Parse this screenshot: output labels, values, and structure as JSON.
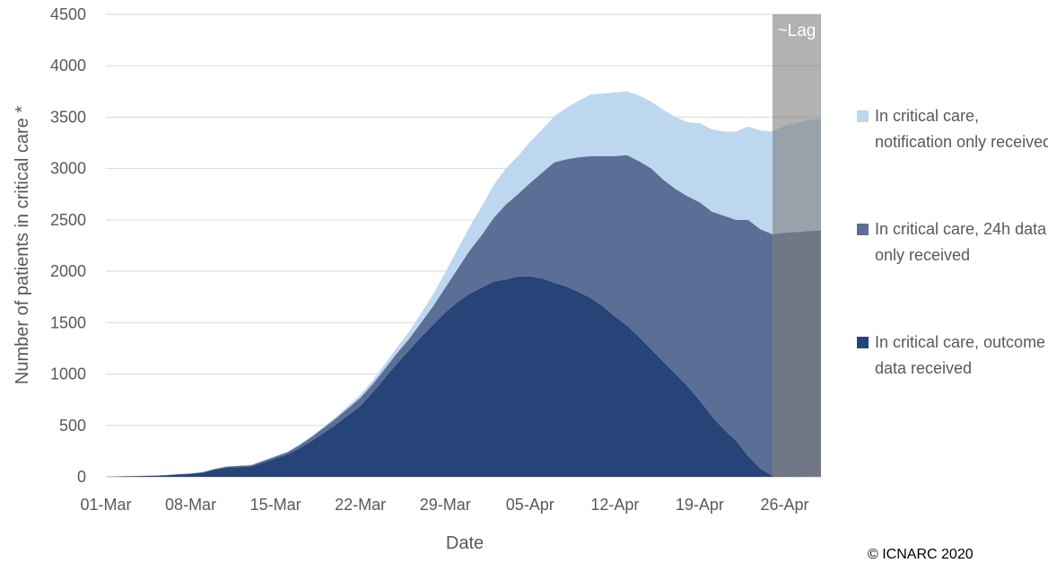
{
  "chart_data": {
    "type": "area",
    "stacked": true,
    "xlabel": "Date",
    "ylabel": "Number of patients in critical care *",
    "ylim": [
      0,
      4500
    ],
    "yticks": [
      0,
      500,
      1000,
      1500,
      2000,
      2500,
      3000,
      3500,
      4000,
      4500
    ],
    "xticks": [
      "01-Mar",
      "08-Mar",
      "15-Mar",
      "22-Mar",
      "29-Mar",
      "05-Apr",
      "12-Apr",
      "19-Apr",
      "26-Apr"
    ],
    "x": [
      "01-Mar",
      "02-Mar",
      "03-Mar",
      "04-Mar",
      "05-Mar",
      "06-Mar",
      "07-Mar",
      "08-Mar",
      "09-Mar",
      "10-Mar",
      "11-Mar",
      "12-Mar",
      "13-Mar",
      "14-Mar",
      "15-Mar",
      "16-Mar",
      "17-Mar",
      "18-Mar",
      "19-Mar",
      "20-Mar",
      "21-Mar",
      "22-Mar",
      "23-Mar",
      "24-Mar",
      "25-Mar",
      "26-Mar",
      "27-Mar",
      "28-Mar",
      "29-Mar",
      "30-Mar",
      "31-Mar",
      "01-Apr",
      "02-Apr",
      "03-Apr",
      "04-Apr",
      "05-Apr",
      "06-Apr",
      "07-Apr",
      "08-Apr",
      "09-Apr",
      "10-Apr",
      "11-Apr",
      "12-Apr",
      "13-Apr",
      "14-Apr",
      "15-Apr",
      "16-Apr",
      "17-Apr",
      "18-Apr",
      "19-Apr",
      "20-Apr",
      "21-Apr",
      "22-Apr",
      "23-Apr",
      "24-Apr",
      "25-Apr",
      "26-Apr",
      "27-Apr",
      "28-Apr",
      "29-Apr"
    ],
    "series": [
      {
        "name": "In critical care, outcome data received",
        "color": "#264478",
        "values": [
          0,
          3,
          5,
          8,
          10,
          15,
          22,
          28,
          40,
          70,
          90,
          95,
          100,
          140,
          180,
          220,
          280,
          350,
          430,
          510,
          600,
          690,
          820,
          960,
          1100,
          1230,
          1360,
          1480,
          1600,
          1700,
          1780,
          1840,
          1900,
          1920,
          1950,
          1950,
          1930,
          1890,
          1850,
          1800,
          1740,
          1660,
          1560,
          1470,
          1360,
          1240,
          1120,
          1000,
          880,
          740,
          590,
          460,
          350,
          200,
          80,
          10,
          5,
          3,
          2,
          1
        ]
      },
      {
        "name": "In critical care, 24h data only received",
        "color": "#5A6E96",
        "values": [
          0,
          1,
          1,
          2,
          2,
          3,
          4,
          5,
          6,
          8,
          10,
          12,
          14,
          16,
          18,
          20,
          30,
          40,
          50,
          60,
          70,
          80,
          80,
          90,
          100,
          110,
          140,
          180,
          240,
          320,
          420,
          510,
          620,
          730,
          800,
          910,
          1030,
          1170,
          1240,
          1310,
          1380,
          1460,
          1560,
          1660,
          1710,
          1760,
          1770,
          1800,
          1850,
          1930,
          1990,
          2080,
          2150,
          2300,
          2330,
          2350,
          2370,
          2380,
          2390,
          2395
        ]
      },
      {
        "name": "In critical care, notification only received",
        "color": "#BDD7EE",
        "values": [
          0,
          0,
          0,
          0,
          0,
          0,
          0,
          0,
          0,
          1,
          1,
          2,
          3,
          4,
          5,
          6,
          8,
          10,
          12,
          15,
          20,
          30,
          35,
          45,
          55,
          70,
          90,
          115,
          150,
          190,
          230,
          280,
          320,
          350,
          370,
          400,
          420,
          450,
          500,
          550,
          600,
          610,
          620,
          620,
          640,
          650,
          680,
          700,
          720,
          770,
          800,
          820,
          860,
          910,
          960,
          1000,
          1040,
          1060,
          1080,
          1090
        ]
      }
    ],
    "annotation": "~Lag",
    "lag_start": "25-Apr",
    "grid": "horizontal",
    "legend_position": "right"
  },
  "copyright": "© ICNARC 2020"
}
